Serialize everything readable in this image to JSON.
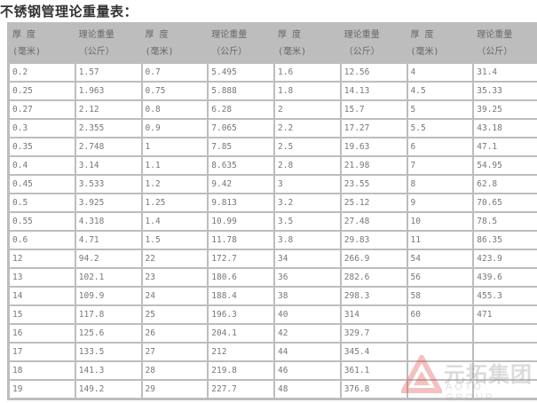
{
  "title": "不锈钢管理论重量表：",
  "headers": [
    {
      "line1": "厚 度",
      "line2": "(毫米)"
    },
    {
      "line1": "理论重量",
      "line2": "（公斤）"
    },
    {
      "line1": "厚 度",
      "line2": "(毫米)"
    },
    {
      "line1": "理论重量",
      "line2": "（公斤）"
    },
    {
      "line1": "厚 度",
      "line2": "(毫米)"
    },
    {
      "line1": "理论重量",
      "line2": "（公斤）"
    },
    {
      "line1": "厚 度",
      "line2": "(毫米)"
    },
    {
      "line1": "理论重量",
      "line2": "（公斤）"
    }
  ],
  "rows": [
    [
      "0.2",
      "1.57",
      "0.7",
      "5.495",
      "1.6",
      "12.56",
      "4",
      "31.4"
    ],
    [
      "0.25",
      "1.963",
      "0.75",
      "5.888",
      "1.8",
      "14.13",
      "4.5",
      "35.33"
    ],
    [
      "0.27",
      "2.12",
      "0.8",
      "6.28",
      "2",
      "15.7",
      "5",
      "39.25"
    ],
    [
      "0.3",
      "2.355",
      "0.9",
      "7.065",
      "2.2",
      "17.27",
      "5.5",
      "43.18"
    ],
    [
      "0.35",
      "2.748",
      "1",
      "7.85",
      "2.5",
      "19.63",
      "6",
      "47.1"
    ],
    [
      "0.4",
      "3.14",
      "1.1",
      "8.635",
      "2.8",
      "21.98",
      "7",
      "54.95"
    ],
    [
      "0.45",
      "3.533",
      "1.2",
      "9.42",
      "3",
      "23.55",
      "8",
      "62.8"
    ],
    [
      "0.5",
      "3.925",
      "1.25",
      "9.813",
      "3.2",
      "25.12",
      "9",
      "70.65"
    ],
    [
      "0.55",
      "4.318",
      "1.4",
      "10.99",
      "3.5",
      "27.48",
      "10",
      "78.5"
    ],
    [
      "0.6",
      "4.71",
      "1.5",
      "11.78",
      "3.8",
      "29.83",
      "11",
      "86.35"
    ],
    [
      "12",
      "94.2",
      "22",
      "172.7",
      "34",
      "266.9",
      "54",
      "423.9"
    ],
    [
      "13",
      "102.1",
      "23",
      "180.6",
      "36",
      "282.6",
      "56",
      "439.6"
    ],
    [
      "14",
      "109.9",
      "24",
      "188.4",
      "38",
      "298.3",
      "58",
      "455.3"
    ],
    [
      "15",
      "117.8",
      "25",
      "196.3",
      "40",
      "314",
      "60",
      "471"
    ],
    [
      "16",
      "125.6",
      "26",
      "204.1",
      "42",
      "329.7",
      "",
      ""
    ],
    [
      "17",
      "133.5",
      "27",
      "212",
      "44",
      "345.4",
      "",
      ""
    ],
    [
      "18",
      "141.3",
      "28",
      "219.8",
      "46",
      "361.1",
      "",
      ""
    ],
    [
      "19",
      "149.2",
      "29",
      "227.7",
      "48",
      "376.8",
      "",
      ""
    ]
  ],
  "watermark": {
    "cn": "元拓集团",
    "en": "AOTO GROUP",
    "color": "#e05050"
  }
}
